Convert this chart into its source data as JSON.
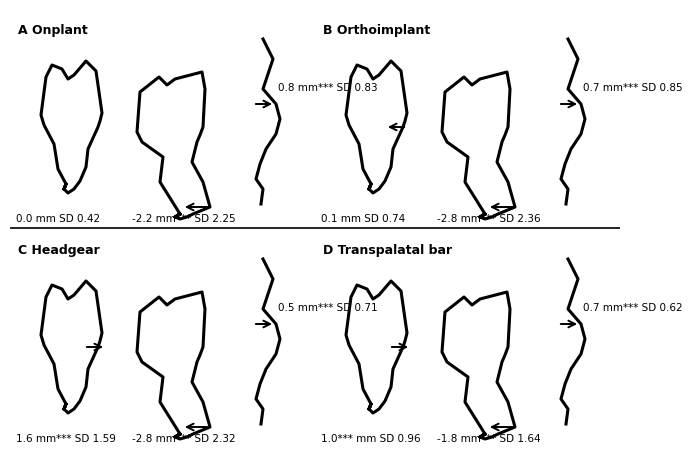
{
  "panels": [
    {
      "id": "A",
      "title": "A Onplant",
      "col": 0,
      "row": 0,
      "incisor_label": "0.0 mm SD 0.42",
      "incisor_arrow_dir": null,
      "molar_label": "-2.2 mm*** SD 2.25",
      "molar_arrow_dir": "left",
      "upper_label": "0.8 mm*** SD 0.83",
      "upper_arrow_dir": "right"
    },
    {
      "id": "B",
      "title": "B Orthoimplant",
      "col": 1,
      "row": 0,
      "incisor_label": "0.1 mm SD 0.74",
      "incisor_arrow_dir": "left",
      "molar_label": "-2.8 mm*** SD 2.36",
      "molar_arrow_dir": "left",
      "upper_label": "0.7 mm*** SD 0.85",
      "upper_arrow_dir": "right"
    },
    {
      "id": "C",
      "title": "C Headgear",
      "col": 0,
      "row": 1,
      "incisor_label": "1.6 mm*** SD 1.59",
      "incisor_arrow_dir": "right",
      "molar_label": "-2.8 mm*** SD 2.32",
      "molar_arrow_dir": "left",
      "upper_label": "0.5 mm*** SD 0.71",
      "upper_arrow_dir": "right"
    },
    {
      "id": "D",
      "title": "D Transpalatal bar",
      "col": 1,
      "row": 1,
      "incisor_label": "1.0*** mm SD 0.96",
      "incisor_arrow_dir": "right",
      "molar_label": "-1.8 mm*** SD 1.64",
      "molar_arrow_dir": "left",
      "upper_label": "0.7 mm*** SD 0.62",
      "upper_arrow_dir": "right"
    }
  ]
}
